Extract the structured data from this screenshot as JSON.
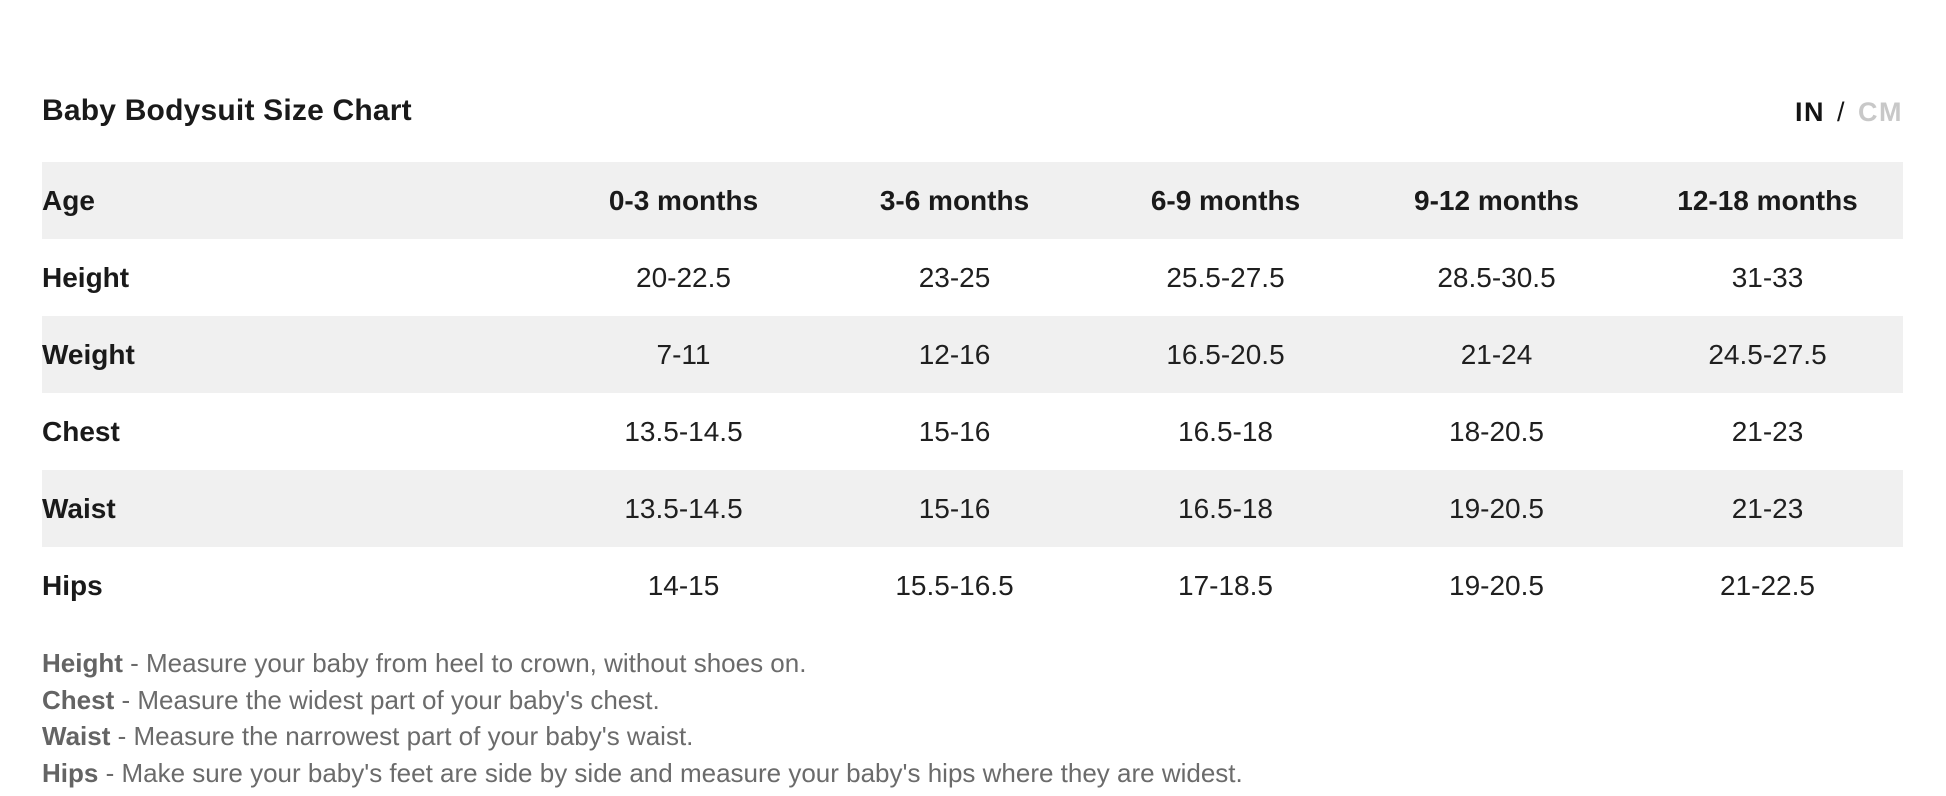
{
  "title": "Baby Bodysuit Size Chart",
  "unit_toggle": {
    "in_label": "IN",
    "separator": "/",
    "cm_label": "CM",
    "active": "IN",
    "active_color": "#141414",
    "inactive_color": "#c8c8c8"
  },
  "table": {
    "corner_label": "Age",
    "columns": [
      "0-3 months",
      "3-6 months",
      "6-9 months",
      "9-12 months",
      "12-18 months"
    ],
    "rows": [
      {
        "label": "Height",
        "values": [
          "20-22.5",
          "23-25",
          "25.5-27.5",
          "28.5-30.5",
          "31-33"
        ]
      },
      {
        "label": "Weight",
        "values": [
          "7-11",
          "12-16",
          "16.5-20.5",
          "21-24",
          "24.5-27.5"
        ]
      },
      {
        "label": "Chest",
        "values": [
          "13.5-14.5",
          "15-16",
          "16.5-18",
          "18-20.5",
          "21-23"
        ]
      },
      {
        "label": "Waist",
        "values": [
          "13.5-14.5",
          "15-16",
          "16.5-18",
          "19-20.5",
          "21-23"
        ]
      },
      {
        "label": "Hips",
        "values": [
          "14-15",
          "15.5-16.5",
          "17-18.5",
          "19-20.5",
          "21-22.5"
        ]
      }
    ],
    "stripe_color": "#f0f0f0"
  },
  "footnotes": [
    {
      "term": "Height",
      "text": "- Measure your baby from heel to crown, without shoes on."
    },
    {
      "term": "Chest",
      "text": "- Measure the widest part of your baby's chest."
    },
    {
      "term": "Waist",
      "text": "- Measure the narrowest part of your baby's waist."
    },
    {
      "term": "Hips",
      "text": "- Make sure your baby's feet are side by side and measure your baby's hips where they are widest."
    }
  ]
}
